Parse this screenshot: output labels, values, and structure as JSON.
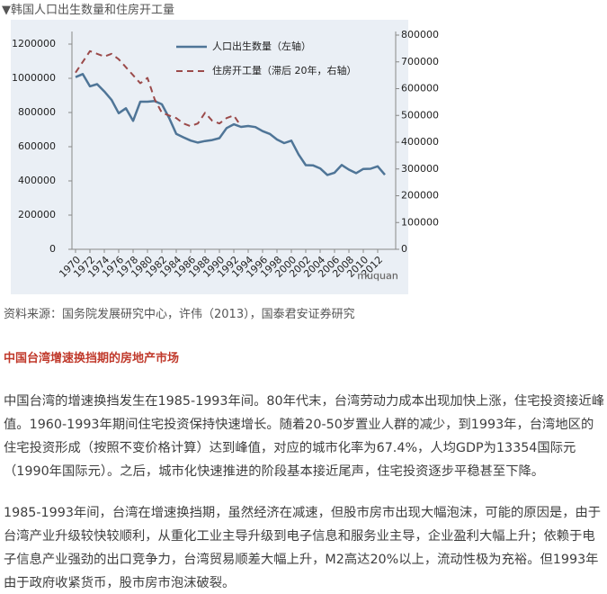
{
  "caption": "▼韩国人口出生数量和住房开工量",
  "chart_data": {
    "type": "line",
    "x": [
      1970,
      1971,
      1972,
      1973,
      1974,
      1975,
      1976,
      1977,
      1978,
      1979,
      1980,
      1981,
      1982,
      1983,
      1984,
      1985,
      1986,
      1987,
      1988,
      1989,
      1990,
      1991,
      1992,
      1993,
      1994,
      1995,
      1996,
      1997,
      1998,
      1999,
      2000,
      2001,
      2002,
      2003,
      2004,
      2005,
      2006,
      2007,
      2008,
      2009,
      2010,
      2011,
      2012,
      2013
    ],
    "series": [
      {
        "name": "人口出生数量（左轴）",
        "color": "#4f7597",
        "dash": false,
        "axis": "y",
        "values": [
          1007000,
          1025000,
          953000,
          966000,
          923000,
          874000,
          796000,
          825000,
          751000,
          863000,
          863000,
          867000,
          848000,
          769000,
          675000,
          655000,
          636000,
          624000,
          633000,
          639000,
          650000,
          709000,
          731000,
          716000,
          721000,
          715000,
          691000,
          675000,
          642000,
          621000,
          635000,
          555000,
          492000,
          491000,
          473000,
          435000,
          448000,
          493000,
          466000,
          445000,
          470000,
          471000,
          485000,
          436000
        ]
      },
      {
        "name": "住房开工量（滞后 20年，右轴）",
        "color": "#9b4a4a",
        "dash": true,
        "axis": "y2",
        "values": [
          660000,
          700000,
          740000,
          730000,
          720000,
          730000,
          710000,
          680000,
          650000,
          620000,
          640000,
          560000,
          510000,
          500000,
          490000,
          470000,
          460000,
          470000,
          510000,
          480000,
          470000,
          490000,
          500000,
          460000,
          null,
          null,
          null,
          null,
          null,
          null,
          null,
          null,
          null,
          null,
          null,
          null,
          null,
          null,
          null,
          null,
          null,
          null,
          null,
          null
        ]
      }
    ],
    "xlim": [
      1969.5,
      2014
    ],
    "xticks": [
      1970,
      1972,
      1974,
      1976,
      1978,
      1980,
      1982,
      1984,
      1986,
      1988,
      1990,
      1992,
      1994,
      1996,
      1998,
      2000,
      2002,
      2004,
      2006,
      2008,
      2010,
      2012
    ],
    "ylim": [
      0,
      1200000
    ],
    "yticks": [
      0,
      200000,
      400000,
      600000,
      800000,
      1000000,
      1200000
    ],
    "y2lim": [
      0,
      800000
    ],
    "y2ticks": [
      0,
      100000,
      200000,
      300000,
      400000,
      500000,
      600000,
      700000,
      800000
    ],
    "watermark": "muquan"
  },
  "source": "资料来源：国务院发展研究中心，许伟（2013），国泰君安证券研究",
  "heading": "中国台湾增速换挡期的房地产市场",
  "paragraphs": [
    "中国台湾的增速换挡发生在1985-1993年间。80年代末，台湾劳动力成本出现加快上涨，住宅投资接近峰值。1960-1993年期间住宅投资保持快速增长。随着20-50岁置业人群的减少，到1993年，台湾地区的住宅投资形成（按照不变价格计算）达到峰值，对应的城市化率为67.4%，人均GDP为13354国际元（1990年国际元）。之后，城市化快速推进的阶段基本接近尾声，住宅投资逐步平稳甚至下降。",
    "1985-1993年间，台湾在增速换挡期，虽然经济在减速，但股市房市出现大幅泡沫，可能的原因是，由于台湾产业升级较快较顺利，从重化工业主导升级到电子信息和服务业主导，企业盈利大幅上升；依赖于电子信息产业强劲的出口竞争力，台湾贸易顺差大幅上升，M2高达20%以上，流动性极为充裕。但1993年由于政府收紧货币，股市房市泡沫破裂。"
  ]
}
